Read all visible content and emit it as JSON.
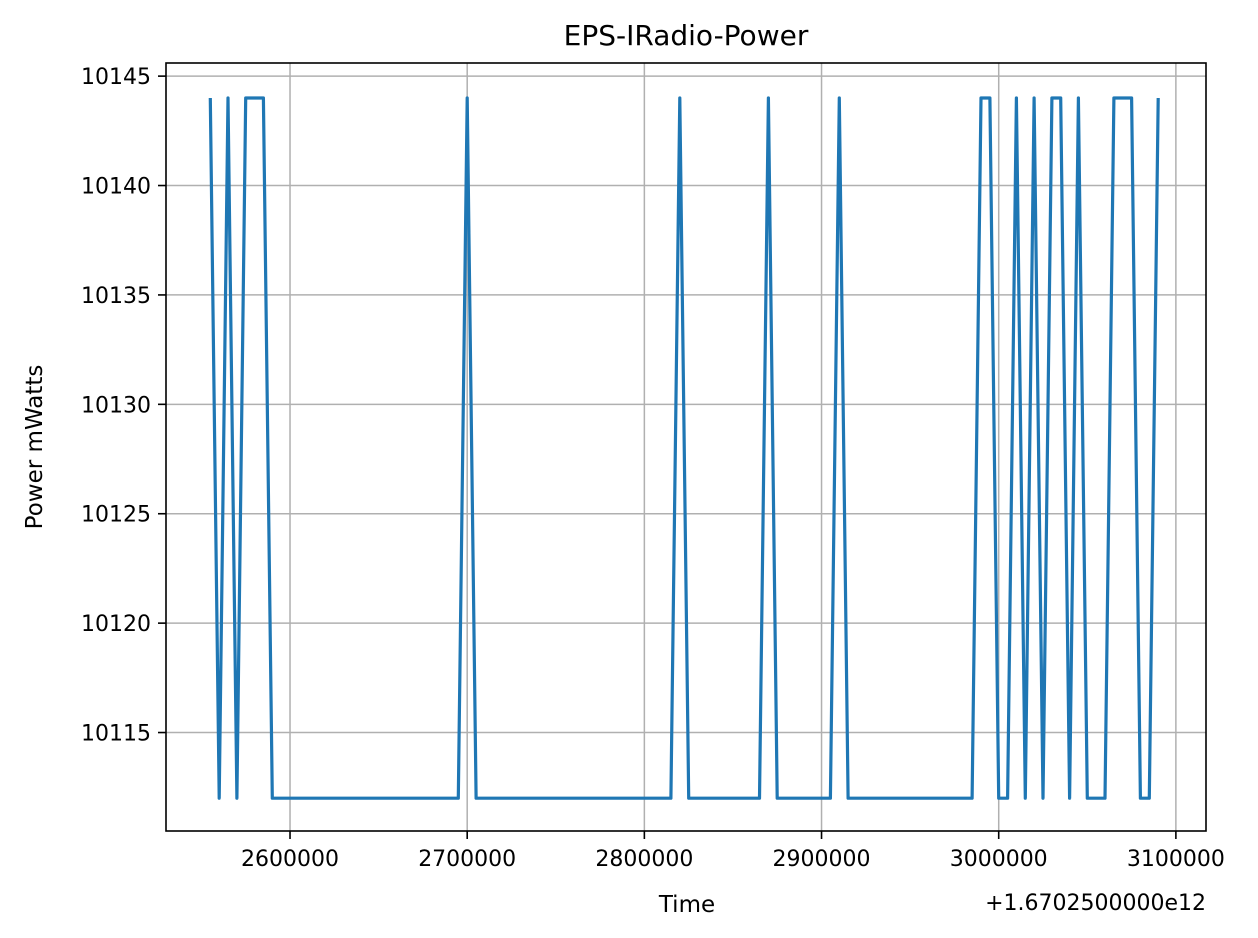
{
  "chart_data": {
    "type": "line",
    "title": "EPS-IRadio-Power",
    "xlabel": "Time",
    "ylabel": "Power mWatts",
    "x_offset_label": "+1.6702500000e12",
    "grid": true,
    "xlim": [
      2530000,
      3117000
    ],
    "ylim": [
      10110.5,
      10145.6
    ],
    "x_ticks": [
      2600000,
      2700000,
      2800000,
      2900000,
      3000000,
      3100000
    ],
    "y_ticks": [
      10115,
      10120,
      10125,
      10130,
      10135,
      10140,
      10145
    ],
    "series": [
      {
        "color": "#1f77b4",
        "x": [
          2555000,
          2560000,
          2565000,
          2570000,
          2575000,
          2580000,
          2585000,
          2590000,
          2595000,
          2695000,
          2700000,
          2705000,
          2815000,
          2820000,
          2825000,
          2865000,
          2870000,
          2875000,
          2905000,
          2910000,
          2915000,
          2985000,
          2990000,
          2995000,
          3000000,
          3005000,
          3010000,
          3015000,
          3020000,
          3025000,
          3030000,
          3035000,
          3040000,
          3045000,
          3050000,
          3055000,
          3060000,
          3065000,
          3070000,
          3075000,
          3080000,
          3085000,
          3090000
        ],
        "y": [
          10144,
          10112,
          10144,
          10112,
          10144,
          10144,
          10144,
          10112,
          10112,
          10112,
          10144,
          10112,
          10112,
          10144,
          10112,
          10112,
          10144,
          10112,
          10112,
          10144,
          10112,
          10112,
          10144,
          10144,
          10112,
          10112,
          10144,
          10112,
          10144,
          10112,
          10144,
          10144,
          10112,
          10144,
          10112,
          10112,
          10112,
          10144,
          10144,
          10144,
          10112,
          10112,
          10144
        ]
      }
    ]
  }
}
